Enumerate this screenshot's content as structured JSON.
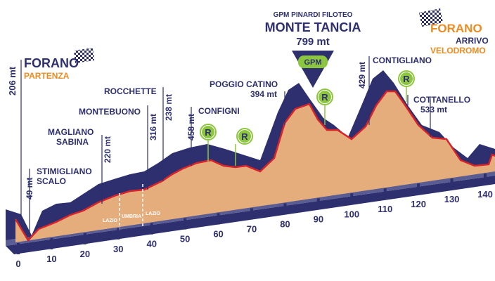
{
  "start": {
    "name": "FORANO",
    "sub": "PARTENZA"
  },
  "finish": {
    "name": "FORANO",
    "arrivo": "ARRIVO",
    "sub": "VELODROMO"
  },
  "summit": {
    "gpm_line": "GPM PINARDI FILOTEO",
    "name": "MONTE TANCIA",
    "alt": "799 mt",
    "badge": "GPM"
  },
  "places": [
    {
      "name": "STIMIGLIANO",
      "name2": "SCALO",
      "alt": "49 mt"
    },
    {
      "name": "MAGLIANO",
      "name2": "SABINA",
      "alt": "220 mt"
    },
    {
      "name": "MONTEBUONO",
      "alt": "316 mt"
    },
    {
      "name": "ROCCHETTE",
      "alt": "238 mt"
    },
    {
      "name": "CONFIGNI",
      "alt": "458 mt"
    },
    {
      "name": "POGGIO CATINO",
      "alt": "394 mt"
    },
    {
      "name": "CONTIGLIANO",
      "alt": "429 mt"
    },
    {
      "name": "COTTANELLO",
      "alt": "533 mt"
    }
  ],
  "start_alt": "206 mt",
  "regions": [
    "LAZIO",
    "UMBRIA",
    "LAZIO"
  ],
  "sprint_badge": "R",
  "km_axis": [
    "0",
    "10",
    "20",
    "30",
    "40",
    "50",
    "60",
    "70",
    "80",
    "90",
    "100",
    "110",
    "120",
    "130",
    "140"
  ],
  "colors": {
    "profile": "#e6ad7c",
    "ridge": "#2d2f6e",
    "line": "#d8232a",
    "accent": "#ef8a1f",
    "gpm": "#8cc63e"
  }
}
